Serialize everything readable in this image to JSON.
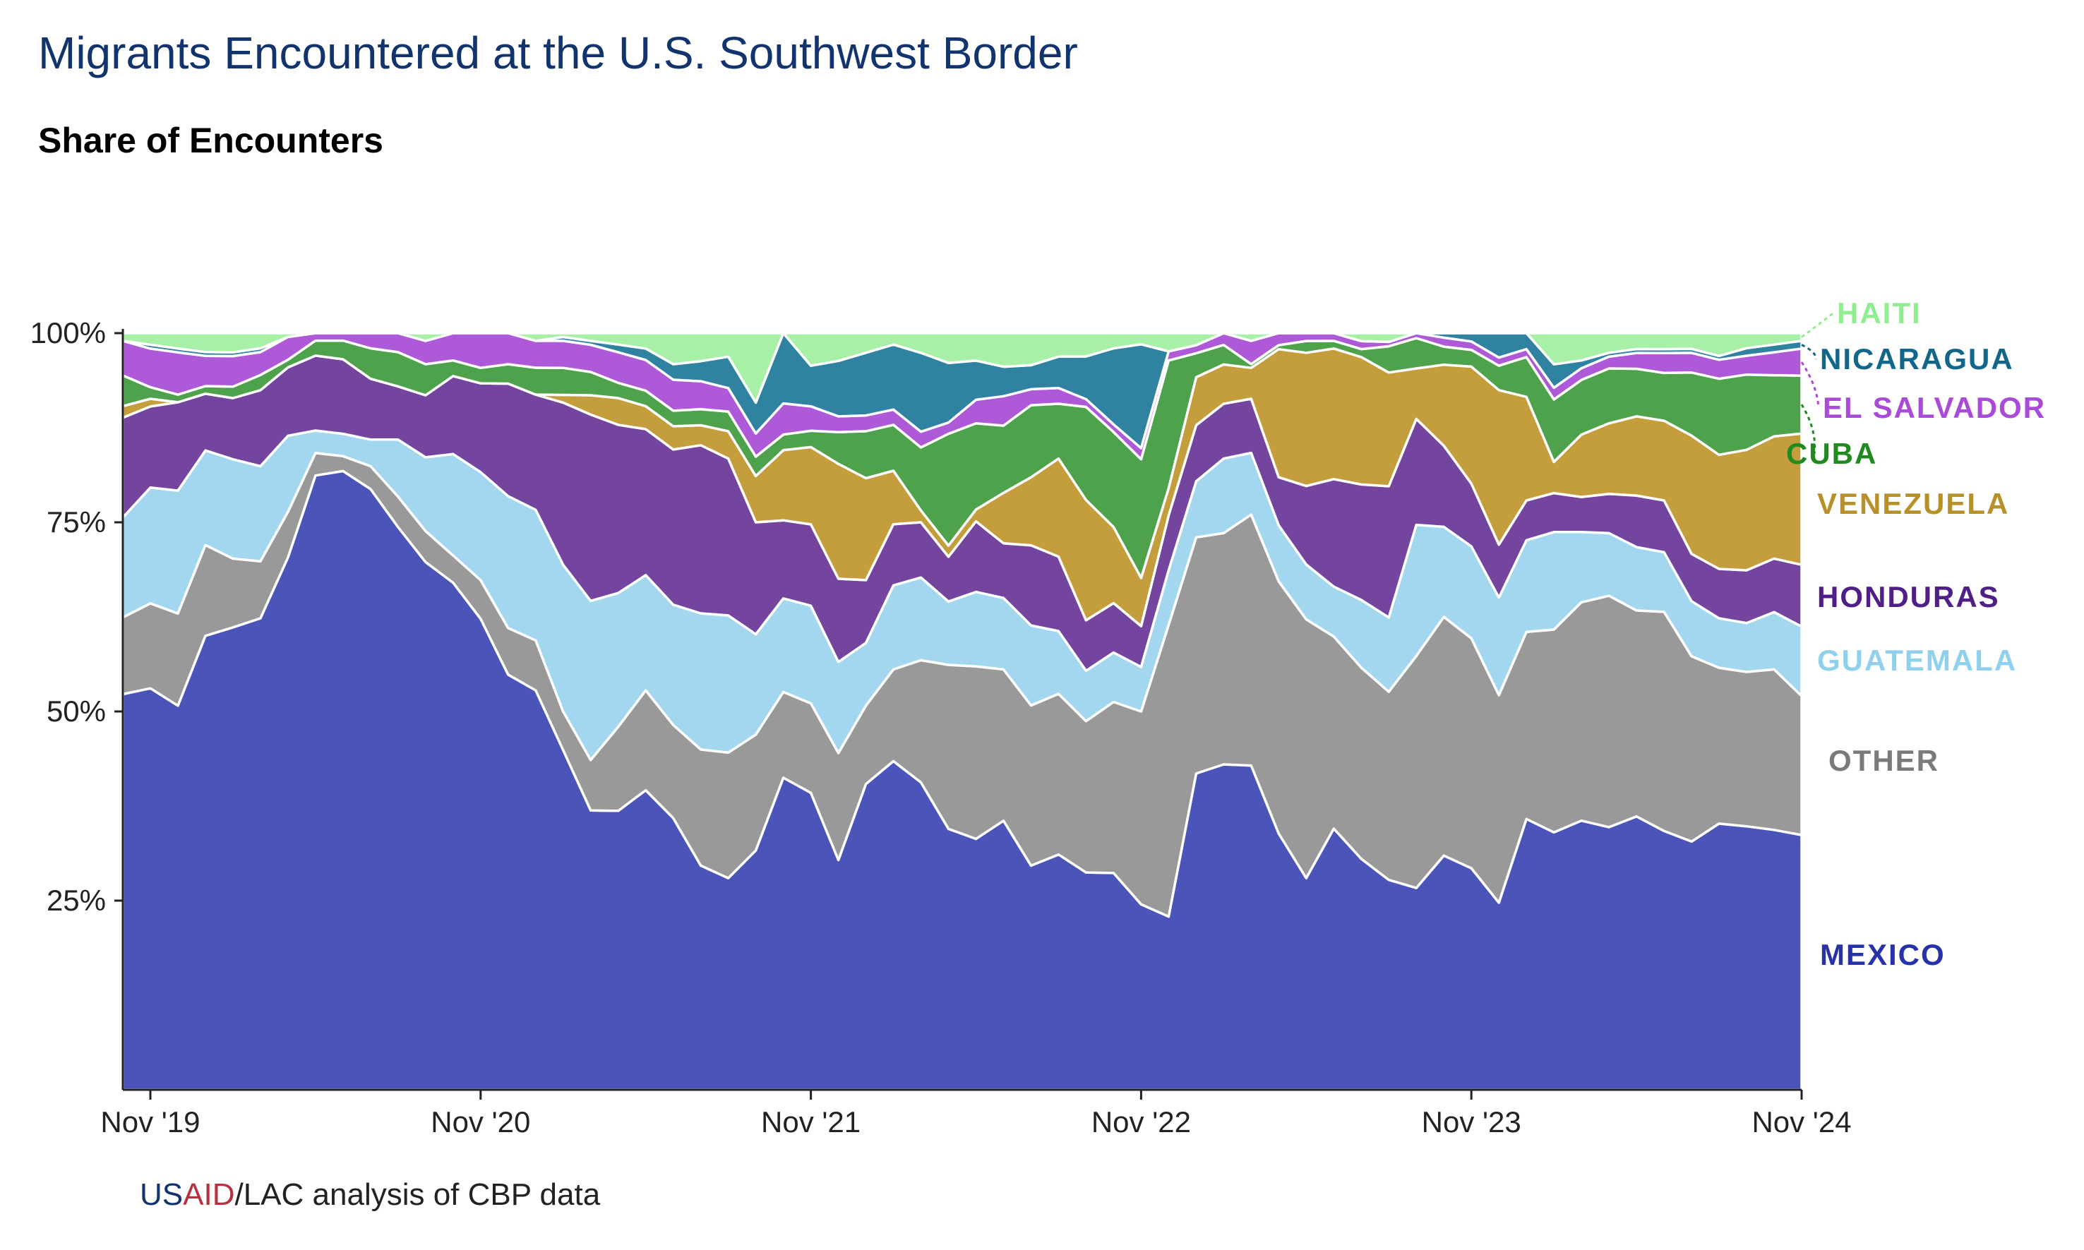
{
  "header": {
    "title": "Migrants Encountered at the U.S. Southwest Border",
    "subtitle": "Share of Encounters"
  },
  "footer": {
    "source_us": "US",
    "source_aid": "AID",
    "source_rest": "/LAC analysis of CBP data"
  },
  "colors": {
    "MEXICO": "#4b55b9",
    "OTHER": "#999999",
    "GUATEMALA": "#a2d7ef",
    "HONDURAS": "#74459e",
    "VENEZUELA": "#c49d3c",
    "CUBA": "#4ea24c",
    "EL SALVADOR": "#ae5ad8",
    "NICARAGUA": "#2f83a0",
    "HAITI": "#a8f0a8"
  },
  "label_colors": {
    "MEXICO": "#2832a8",
    "OTHER": "#7a7a7a",
    "GUATEMALA": "#8fd0ee",
    "HONDURAS": "#4f1e86",
    "VENEZUELA": "#b8902a",
    "CUBA": "#1f8a1f",
    "EL SALVADOR": "#a94bd8",
    "NICARAGUA": "#12668a",
    "HAITI": "#90ee90"
  },
  "chart_data": {
    "type": "area",
    "stacked": true,
    "title": "Share of Encounters",
    "xlabel": "",
    "ylabel": "",
    "x_start": "Oct '19",
    "x_end": "Nov '24",
    "x_step": "1 month",
    "x_tick_labels": [
      "Nov '19",
      "Nov '20",
      "Nov '21",
      "Nov '22",
      "Nov '23",
      "Nov '24"
    ],
    "y_tick_labels": [
      "25%",
      "50%",
      "75%",
      "100%"
    ],
    "ylim": [
      0,
      100
    ],
    "legend": "direct labels at right end",
    "grid": false,
    "series": [
      {
        "name": "MEXICO",
        "values": [
          51.5,
          52,
          50,
          60,
          60.5,
          62,
          70,
          82,
          83,
          79,
          74,
          68,
          65,
          61,
          53.5,
          52,
          44,
          36,
          36.5,
          39,
          35,
          28,
          27,
          31,
          40,
          36.5,
          29,
          39,
          43,
          39,
          35,
          32,
          32,
          28,
          30,
          28,
          28.5,
          25,
          19,
          39.5,
          41.5,
          42,
          32,
          27,
          34,
          29,
          24,
          20,
          26,
          26.5,
          23,
          34,
          33,
          34.5,
          33.5,
          34.5,
          32.5,
          31.5,
          35,
          35,
          34,
          33
        ]
      },
      {
        "name": "OTHER",
        "values": [
          10,
          11,
          12,
          12,
          9,
          7.5,
          6,
          3,
          2,
          3,
          4,
          4,
          3.5,
          5,
          6,
          6.5,
          5,
          6.5,
          11,
          13,
          12,
          14.5,
          16,
          15,
          11,
          11,
          13.5,
          10,
          12,
          15.5,
          22,
          22,
          18,
          20,
          20.5,
          19.5,
          22.5,
          26,
          32,
          29.5,
          29.5,
          32.5,
          31.5,
          33,
          25,
          24,
          21.5,
          23,
          26.5,
          27.5,
          25.5,
          23.5,
          26,
          28,
          29.5,
          26,
          27.5,
          23.5,
          20.5,
          20.5,
          21,
          18
        ]
      },
      {
        "name": "GUATEMALA",
        "values": [
          13,
          15,
          16,
          12.5,
          13,
          12.5,
          10,
          3,
          3,
          3.5,
          7.5,
          9.5,
          13,
          14,
          17,
          17,
          19,
          20.5,
          17.5,
          15,
          15.5,
          17,
          17.5,
          13,
          12,
          12,
          11.5,
          8,
          11,
          10.5,
          8.5,
          9.5,
          8.5,
          10,
          8,
          6.5,
          6.5,
          6,
          6,
          7,
          9.5,
          8,
          7,
          7,
          6.5,
          8.5,
          8.5,
          13,
          10,
          11,
          12,
          11.5,
          12.5,
          9,
          8,
          8,
          7.5,
          7,
          6.5,
          6.5,
          7.5,
          9
        ]
      },
      {
        "name": "HONDURAS",
        "values": [
          13,
          10.5,
          11.5,
          7.5,
          8,
          10,
          9,
          10,
          10,
          8,
          7,
          8,
          10,
          11.5,
          14.5,
          15,
          21,
          24,
          22,
          19,
          20,
          21,
          20,
          14.5,
          10,
          10,
          10.5,
          8,
          8,
          7,
          6,
          9,
          6.5,
          10,
          9.5,
          6.5,
          6.5,
          5.5,
          6,
          7,
          7,
          7,
          6,
          10,
          14,
          14.5,
          15,
          10.5,
          9,
          7.5,
          6.5,
          5,
          5,
          4.5,
          5,
          6.5,
          6.5,
          6,
          6.5,
          7,
          7,
          8
        ]
      },
      {
        "name": "VENEZUELA",
        "values": [
          1.5,
          1,
          0,
          0,
          0,
          0,
          0,
          0,
          0,
          0,
          0,
          0,
          0,
          0,
          0,
          0,
          1,
          2.5,
          3.5,
          3,
          3,
          2.5,
          3.5,
          6,
          9,
          9.5,
          14.5,
          13,
          7,
          1.5,
          1.5,
          1.5,
          6,
          8.5,
          12.5,
          15.5,
          10,
          6.5,
          3,
          6,
          5,
          4,
          16,
          17,
          17,
          16,
          13,
          5,
          9,
          14,
          19,
          13,
          4,
          8,
          9,
          10,
          10,
          15,
          15,
          16,
          16,
          17
        ]
      },
      {
        "name": "CUBA",
        "values": [
          4,
          1.5,
          1,
          1,
          1.5,
          2,
          1,
          2,
          2.5,
          4,
          4.5,
          4,
          2,
          2,
          2.5,
          3.5,
          3.5,
          3,
          2,
          2,
          2,
          2,
          2.5,
          2.5,
          2,
          2,
          4,
          6,
          6,
          8,
          15,
          11,
          8,
          9,
          7,
          12,
          12.5,
          16,
          14,
          3,
          2.5,
          0.5,
          0.5,
          1.5,
          1,
          1,
          3,
          3,
          2,
          2,
          3,
          5,
          8,
          7,
          7,
          6,
          6,
          8,
          10,
          10,
          8,
          7.5
        ]
      },
      {
        "name": "EL SALVADOR",
        "values": [
          4.5,
          5,
          5.5,
          4,
          4,
          3,
          3,
          1,
          1,
          2,
          2.5,
          3,
          3.5,
          4.5,
          4,
          3.5,
          3.5,
          3.5,
          4,
          4,
          4,
          3.5,
          3,
          3,
          4,
          3,
          2,
          2,
          2,
          2,
          1.5,
          3,
          3.5,
          2,
          2,
          1,
          1,
          1.5,
          1,
          1,
          1.5,
          3,
          1.5,
          1,
          1,
          1,
          0.5,
          0.5,
          1,
          1,
          1,
          1,
          1.5,
          1.5,
          1.5,
          2,
          2.5,
          2.5,
          2.5,
          2.5,
          3,
          3.5
        ]
      },
      {
        "name": "NICARAGUA",
        "values": [
          0,
          0.5,
          0.5,
          0.5,
          0.5,
          0.5,
          0,
          0,
          0,
          0,
          0,
          0,
          0,
          0,
          0,
          0,
          0.5,
          0.5,
          1,
          1.5,
          2,
          2.5,
          4,
          4,
          9,
          5,
          7,
          8,
          8.5,
          10,
          8,
          5,
          3.5,
          3,
          4,
          5.5,
          10,
          14,
          0,
          0,
          0,
          0,
          0,
          0,
          0,
          0,
          0,
          0,
          0.5,
          1,
          3,
          2,
          3,
          1,
          0.5,
          0.5,
          0.5,
          0.5,
          0.5,
          1,
          1,
          1
        ]
      },
      {
        "name": "HAITI",
        "values": [
          1,
          1.5,
          2,
          2.5,
          2.5,
          2,
          0.5,
          0,
          0,
          0,
          0,
          1,
          0,
          0,
          0,
          1,
          0.5,
          1,
          1.5,
          2,
          4,
          3.5,
          3,
          9,
          0,
          4,
          3.5,
          2.5,
          1.5,
          2.5,
          4,
          3.5,
          4,
          4,
          3,
          3,
          2,
          1.5,
          2,
          1.5,
          0,
          1,
          0,
          0,
          0,
          1,
          1,
          0,
          0,
          0,
          0,
          0,
          4,
          3.5,
          2.5,
          2,
          2,
          2,
          3,
          2,
          1.5,
          1
        ]
      }
    ]
  }
}
